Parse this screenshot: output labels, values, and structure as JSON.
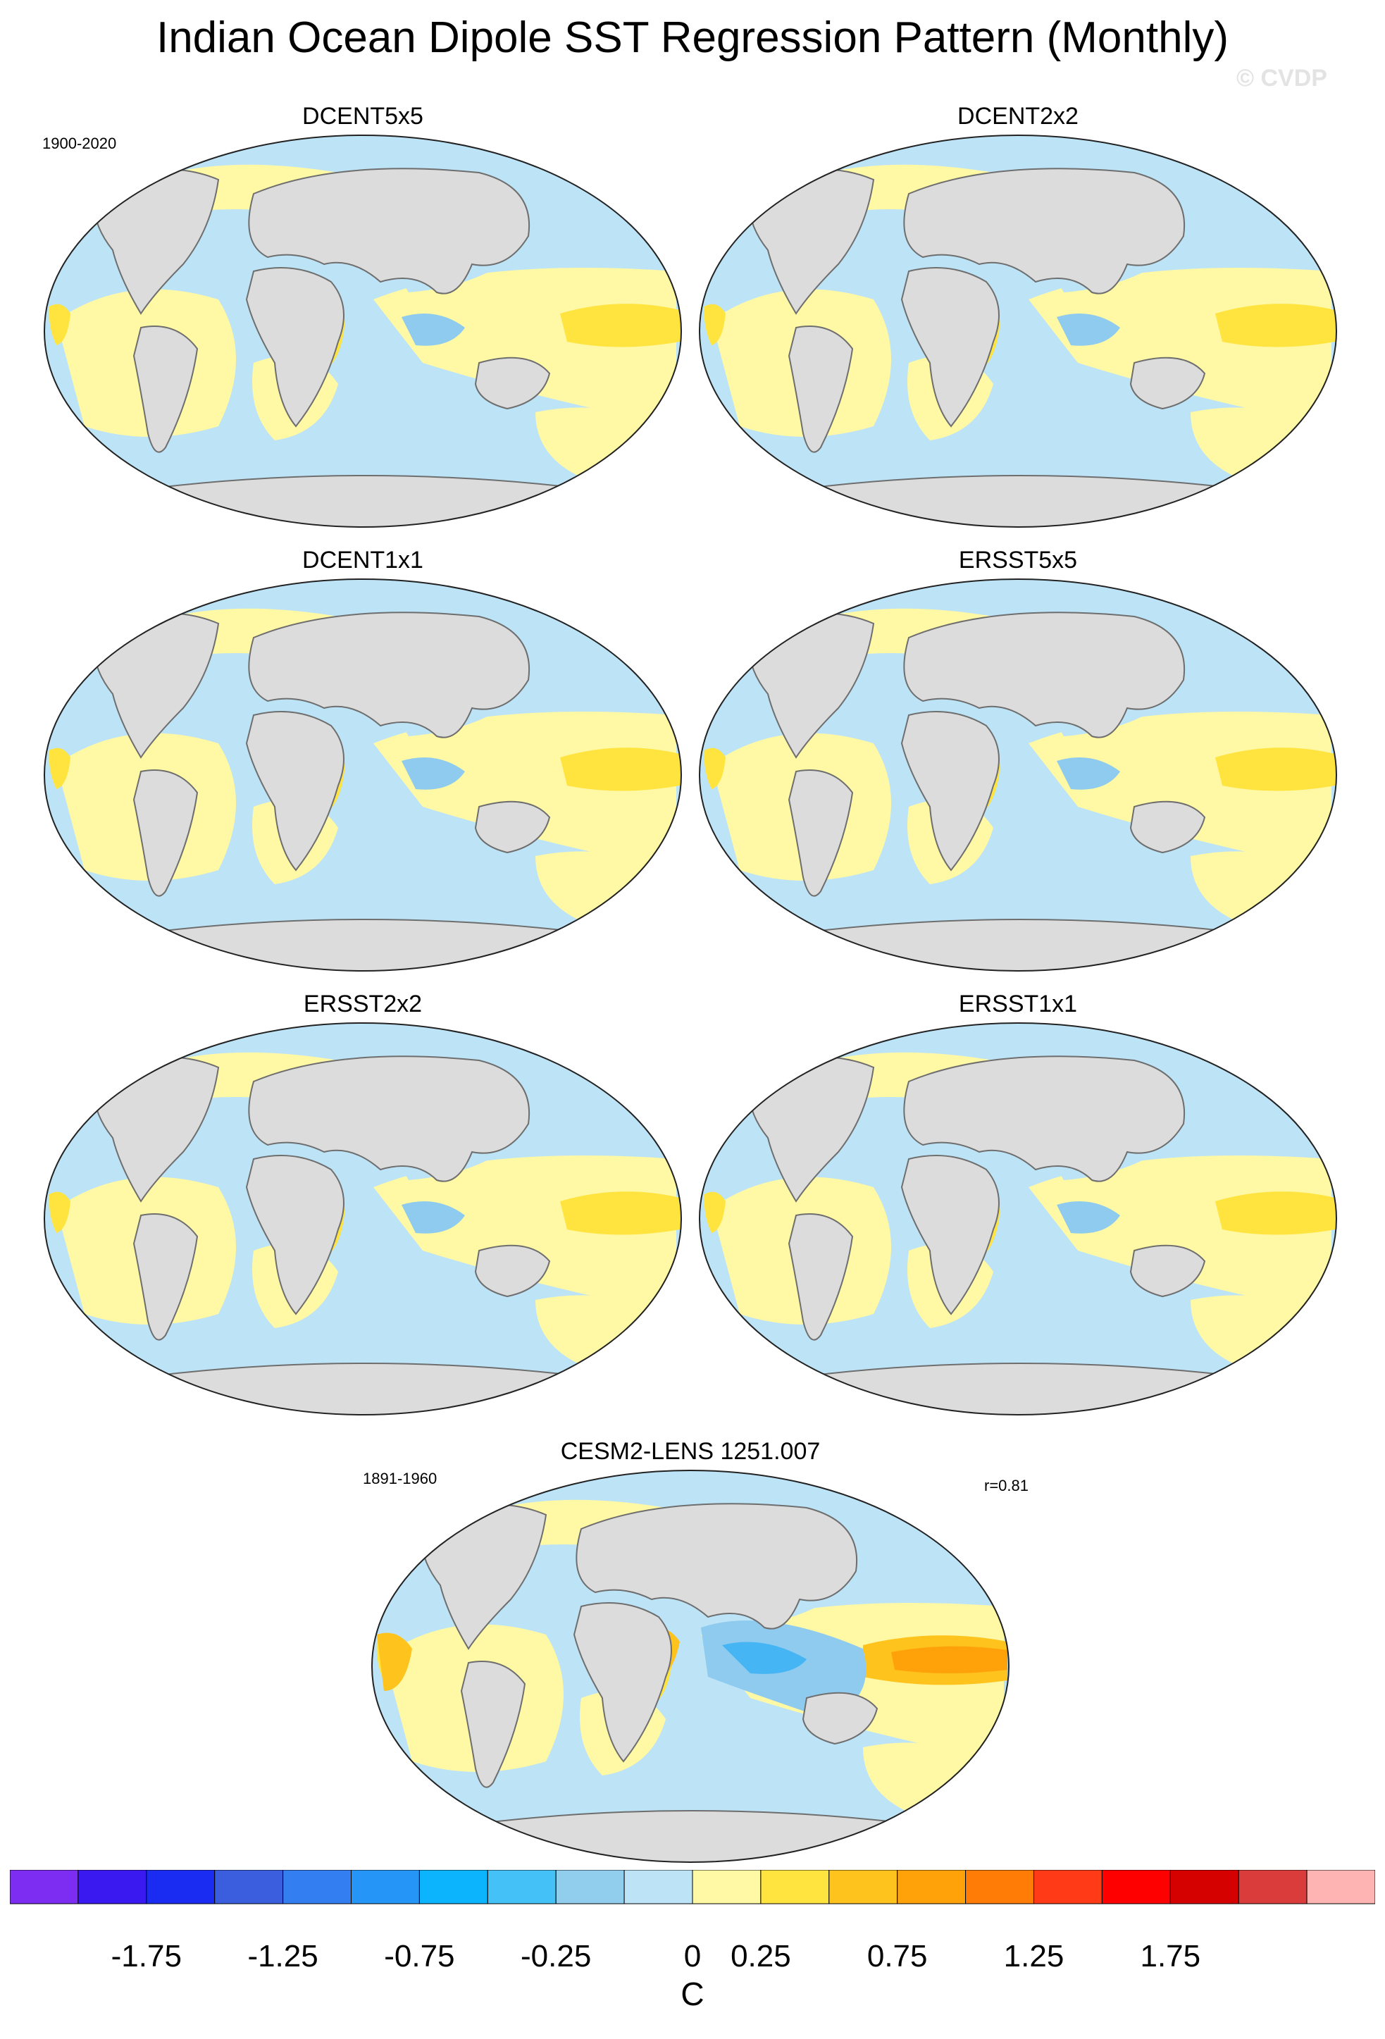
{
  "title": "Indian Ocean Dipole SST Regression Pattern (Monthly)",
  "watermark": "© CVDP",
  "colors": {
    "land": "#dcdcdc",
    "coast": "#6e6e6e",
    "neg_weak": "#bde3f6",
    "neg_mod": "#8ecbee",
    "neg_strong": "#45b5f4",
    "pos_weak": "#fff8a5",
    "pos_mod": "#ffe440",
    "pos_strong": "#ffc31d",
    "pos_vstrong": "#ffa20a"
  },
  "panels": [
    {
      "title": "DCENT5x5",
      "period": "1900-2020",
      "corr": ""
    },
    {
      "title": "DCENT2x2",
      "period": "",
      "corr": ""
    },
    {
      "title": "DCENT1x1",
      "period": "",
      "corr": ""
    },
    {
      "title": "ERSST5x5",
      "period": "",
      "corr": ""
    },
    {
      "title": "ERSST2x2",
      "period": "",
      "corr": ""
    },
    {
      "title": "ERSST1x1",
      "period": "",
      "corr": ""
    },
    {
      "title": "CESM2-LENS 1251.007",
      "period": "1891-1960",
      "corr": "r=0.81"
    }
  ],
  "colorbar": {
    "unit": "C",
    "colors": [
      "#7d2df1",
      "#3a18f0",
      "#1a2cf2",
      "#3a5ede",
      "#337ef1",
      "#2596f8",
      "#0cb3fd",
      "#44c2f8",
      "#91cdec",
      "#bde3f6",
      "#fff8a5",
      "#ffe440",
      "#ffc31d",
      "#ffa20a",
      "#ff7d06",
      "#ff3b17",
      "#ff0000",
      "#d50000",
      "#da3c3c",
      "#ffb4b4"
    ],
    "tick_labels": [
      "-1.75",
      "-1.25",
      "-0.75",
      "-0.25",
      "0",
      "0.25",
      "0.75",
      "1.25",
      "1.75"
    ]
  }
}
